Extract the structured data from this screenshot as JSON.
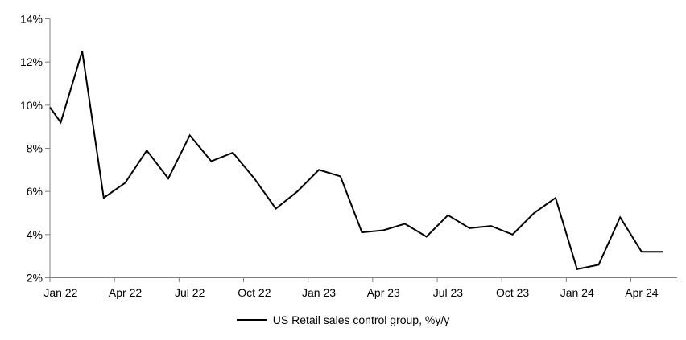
{
  "chart_data": {
    "type": "line",
    "title": "",
    "series_name": "US Retail sales control group, %y/y",
    "x": [
      "Dec 21",
      "Jan 22",
      "Feb 22",
      "Mar 22",
      "Apr 22",
      "May 22",
      "Jun 22",
      "Jul 22",
      "Aug 22",
      "Sep 22",
      "Oct 22",
      "Nov 22",
      "Dec 22",
      "Jan 23",
      "Feb 23",
      "Mar 23",
      "Apr 23",
      "May 23",
      "Jun 23",
      "Jul 23",
      "Aug 23",
      "Sep 23",
      "Oct 23",
      "Nov 23",
      "Dec 23",
      "Jan 24",
      "Feb 24",
      "Mar 24",
      "Apr 24",
      "May 24"
    ],
    "values": [
      9.9,
      9.2,
      12.5,
      5.7,
      6.4,
      7.9,
      6.6,
      8.6,
      7.4,
      7.8,
      6.6,
      5.2,
      6.0,
      7.0,
      6.7,
      4.1,
      4.2,
      4.5,
      3.9,
      4.9,
      4.3,
      4.4,
      4.0,
      5.0,
      5.7,
      2.4,
      2.6,
      4.8,
      3.2,
      3.2
    ],
    "x_tick_labels": [
      "Jan 22",
      "Apr 22",
      "Jul 22",
      "Oct 22",
      "Jan 23",
      "Apr 23",
      "Jul 23",
      "Oct 23",
      "Jan 24",
      "Apr 24"
    ],
    "x_tick_every_months": 3,
    "y_tick_labels": [
      "14%",
      "12%",
      "10%",
      "8%",
      "6%",
      "4%",
      "2%"
    ],
    "ylim": [
      2,
      14
    ],
    "y_tick_step": 2,
    "grid": false,
    "legend_position": "bottom",
    "line_color": "#000000",
    "axis_color": "#808080",
    "background_color": "#ffffff",
    "layout_note": "first point (Dec 21) is clipped at the plot left edge; monthly points centered between category boundaries"
  }
}
